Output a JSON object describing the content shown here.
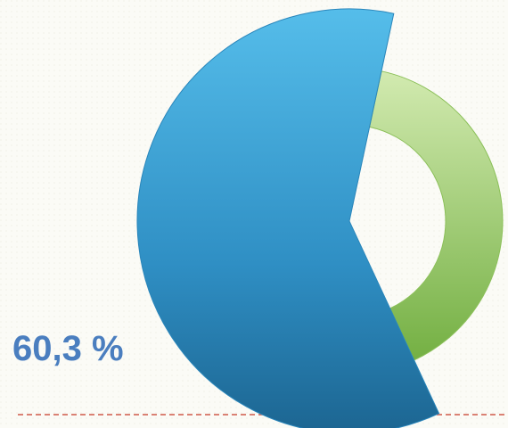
{
  "chart_data": {
    "type": "pie",
    "values": [
      60.3,
      39.7
    ],
    "value_labels": [
      "60,3 %",
      null
    ],
    "colors": [
      "#3a9fd6",
      "#9fd06a"
    ]
  }
}
